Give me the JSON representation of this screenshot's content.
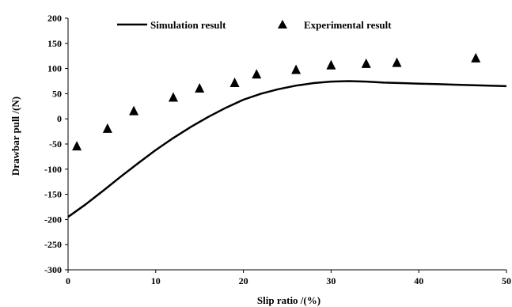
{
  "chart_data": {
    "type": "line",
    "xlabel": "Slip ratio /(%)",
    "ylabel": "Drawbar pull /(N)",
    "xlim": [
      0,
      50
    ],
    "ylim": [
      -300,
      200
    ],
    "x_ticks": [
      0,
      10,
      20,
      30,
      40,
      50
    ],
    "y_ticks": [
      200,
      150,
      100,
      50,
      0,
      -50,
      -100,
      -150,
      -200,
      -250,
      -300
    ],
    "grid": false,
    "legend_position": "top",
    "series": [
      {
        "name": "Simulation result",
        "style": "line",
        "color": "#000000",
        "x": [
          0,
          2,
          4,
          6,
          8,
          10,
          12,
          14,
          16,
          18,
          20,
          22,
          24,
          26,
          28,
          30,
          32,
          34,
          36,
          38,
          40,
          42,
          44,
          46,
          48,
          50
        ],
        "y": [
          -195,
          -170,
          -143,
          -115,
          -88,
          -62,
          -38,
          -16,
          4,
          22,
          38,
          50,
          59,
          66,
          71,
          74,
          75,
          74,
          72,
          71,
          70,
          69,
          68,
          67,
          66,
          65
        ]
      },
      {
        "name": "Experimental result",
        "style": "triangle",
        "color": "#000000",
        "x": [
          1,
          4.5,
          7.5,
          12,
          15,
          19,
          21.5,
          26,
          30,
          34,
          37.5,
          46.5
        ],
        "y": [
          -55,
          -20,
          15,
          42,
          60,
          71,
          88,
          97,
          106,
          109,
          111,
          120
        ]
      }
    ]
  }
}
